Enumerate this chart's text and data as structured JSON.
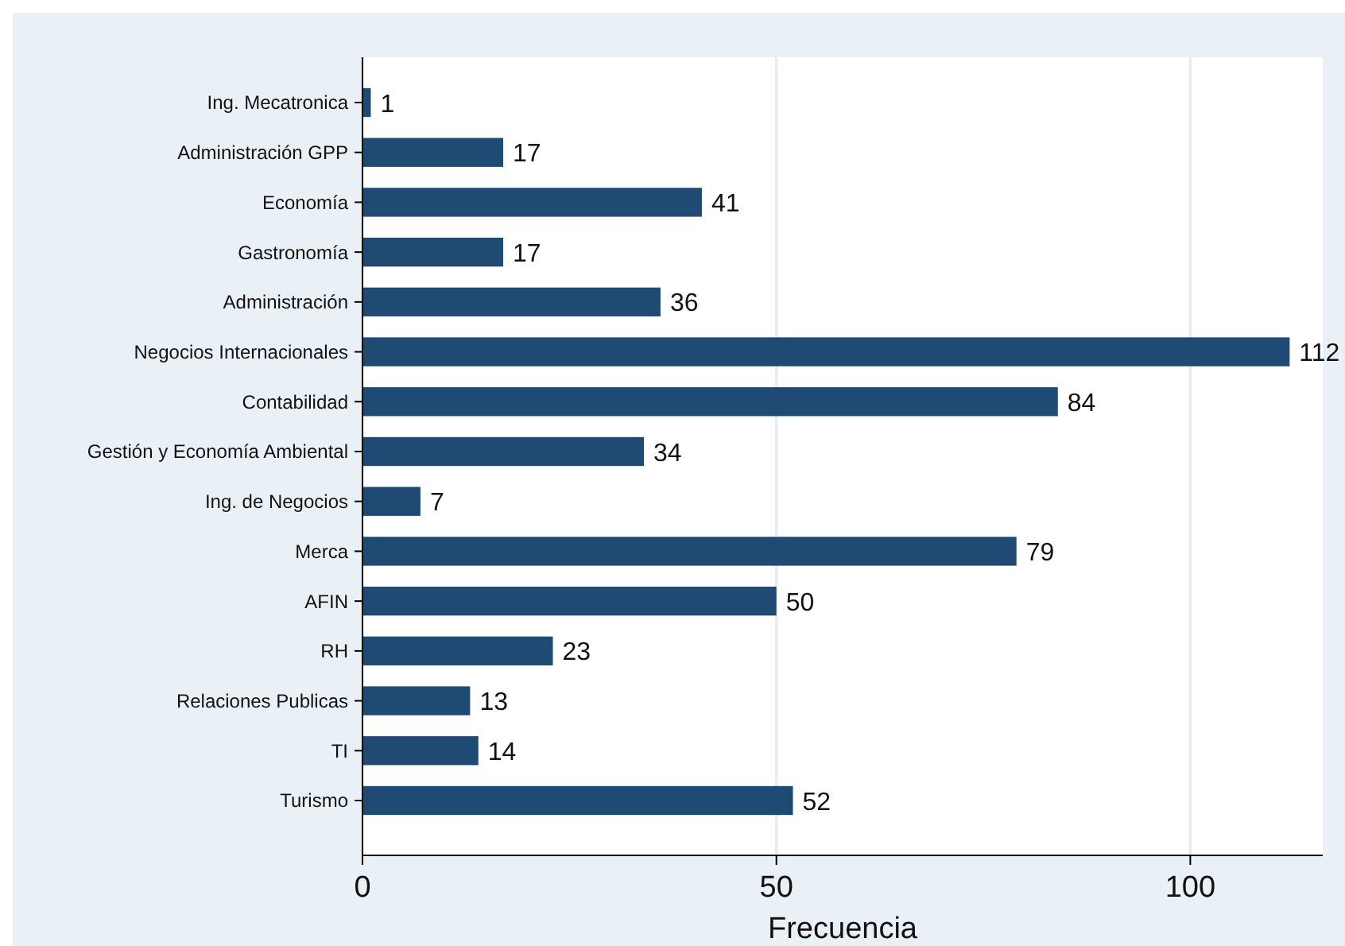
{
  "chart_data": {
    "type": "bar",
    "orientation": "horizontal",
    "xlabel": "Frecuencia",
    "categories": [
      "Ing. Mecatronica",
      "Administración GPP",
      "Economía",
      "Gastronomía",
      "Administración",
      "Negocios Internacionales",
      "Contabilidad",
      "Gestión y Economía Ambiental",
      "Ing. de Negocios",
      "Merca",
      "AFIN",
      "RH",
      "Relaciones Publicas",
      "TI",
      "Turismo"
    ],
    "values": [
      1,
      17,
      41,
      17,
      36,
      112,
      84,
      34,
      7,
      79,
      50,
      23,
      13,
      14,
      52
    ],
    "color": "#1f4a74",
    "xlim": [
      0,
      116
    ],
    "xticks": [
      0,
      50,
      100
    ],
    "grid": "x",
    "data_labels": true
  }
}
